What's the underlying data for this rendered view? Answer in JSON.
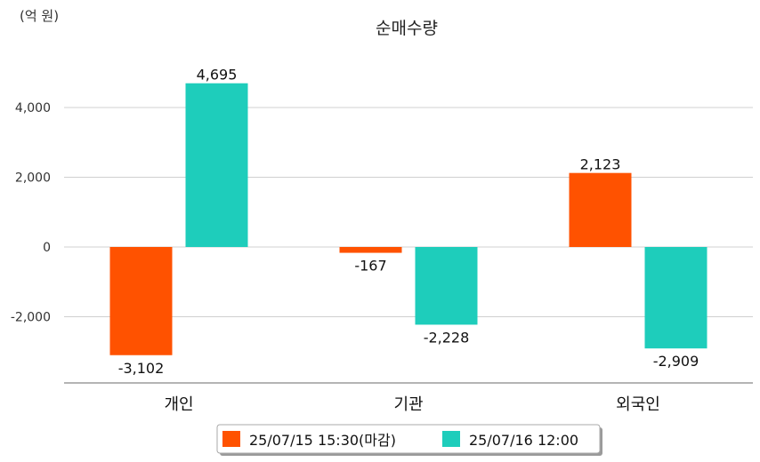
{
  "chart_data": {
    "type": "bar",
    "title": "순매수량",
    "unit_label": "(억 원)",
    "categories": [
      "개인",
      "기관",
      "외국인"
    ],
    "series": [
      {
        "name": "25/07/15 15:30(마감)",
        "color": "#ff5200",
        "values": [
          -3102,
          -167,
          2123
        ],
        "labels": [
          "-3,102",
          "-167",
          "2,123"
        ]
      },
      {
        "name": "25/07/16 12:00",
        "color": "#1ecdbb",
        "values": [
          4695,
          -2228,
          -2909
        ],
        "labels": [
          "4,695",
          "-2,228",
          "-2,909"
        ]
      }
    ],
    "yticks": [
      4000,
      2000,
      0,
      -2000
    ],
    "ytick_labels": [
      "4,000",
      "2,000",
      "0",
      "-2,000"
    ],
    "ylim": [
      -3900,
      5400
    ],
    "grid": true,
    "legend_position": "bottom-center"
  }
}
